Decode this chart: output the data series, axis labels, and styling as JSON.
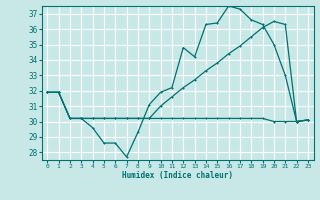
{
  "title": "",
  "xlabel": "Humidex (Indice chaleur)",
  "ylabel": "",
  "bg_color": "#c8e8e8",
  "grid_color": "#ffffff",
  "line_color": "#007070",
  "xlim": [
    -0.5,
    23.5
  ],
  "ylim": [
    27.5,
    37.5
  ],
  "xticks": [
    0,
    1,
    2,
    3,
    4,
    5,
    6,
    7,
    8,
    9,
    10,
    11,
    12,
    13,
    14,
    15,
    16,
    17,
    18,
    19,
    20,
    21,
    22,
    23
  ],
  "yticks": [
    28,
    29,
    30,
    31,
    32,
    33,
    34,
    35,
    36,
    37
  ],
  "line1_x": [
    0,
    1,
    2,
    3,
    4,
    5,
    6,
    7,
    8,
    9,
    10,
    11,
    12,
    13,
    14,
    15,
    16,
    17,
    18,
    19,
    20,
    21,
    22,
    23
  ],
  "line1_y": [
    31.9,
    31.9,
    30.2,
    30.2,
    30.2,
    30.2,
    30.2,
    30.2,
    30.2,
    30.2,
    30.2,
    30.2,
    30.2,
    30.2,
    30.2,
    30.2,
    30.2,
    30.2,
    30.2,
    30.2,
    30.0,
    30.0,
    30.0,
    30.1
  ],
  "line2_x": [
    0,
    1,
    2,
    3,
    4,
    5,
    6,
    7,
    8,
    9,
    10,
    11,
    12,
    13,
    14,
    15,
    16,
    17,
    18,
    19,
    20,
    21,
    22,
    23
  ],
  "line2_y": [
    31.9,
    31.9,
    30.2,
    30.2,
    29.6,
    28.6,
    28.6,
    27.7,
    29.3,
    31.1,
    31.9,
    32.2,
    34.8,
    34.2,
    36.3,
    36.4,
    37.5,
    37.3,
    36.6,
    36.3,
    35.0,
    33.0,
    30.0,
    30.1
  ],
  "line3_x": [
    0,
    1,
    2,
    3,
    4,
    5,
    6,
    7,
    8,
    9,
    10,
    11,
    12,
    13,
    14,
    15,
    16,
    17,
    18,
    19,
    20,
    21,
    22,
    23
  ],
  "line3_y": [
    31.9,
    31.9,
    30.2,
    30.2,
    30.2,
    30.2,
    30.2,
    30.2,
    30.2,
    30.2,
    31.0,
    31.6,
    32.2,
    32.7,
    33.3,
    33.8,
    34.4,
    34.9,
    35.5,
    36.1,
    36.5,
    36.3,
    30.0,
    30.1
  ]
}
